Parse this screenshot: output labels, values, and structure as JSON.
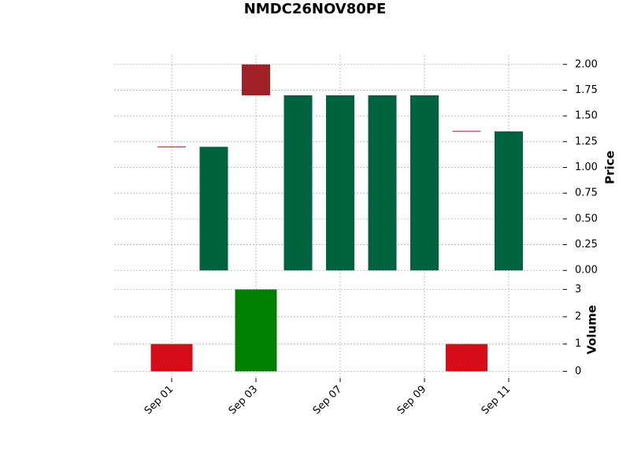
{
  "chart_data": {
    "type": "candlestick",
    "title": "NMDC26NOV80PE",
    "categories": [
      "Sep 01",
      null,
      "Sep 03",
      null,
      "Sep 07",
      null,
      "Sep 09",
      null,
      "Sep 11"
    ],
    "open": [
      1.2,
      0,
      2.0,
      0,
      0,
      0,
      0,
      1.35,
      0
    ],
    "high": [
      1.2,
      1.2,
      2.0,
      1.7,
      1.7,
      1.7,
      1.7,
      1.35,
      1.35
    ],
    "low": [
      1.2,
      0,
      1.7,
      0,
      0,
      0,
      0,
      1.35,
      0
    ],
    "close": [
      1.2,
      1.2,
      1.7,
      1.7,
      1.7,
      1.7,
      1.7,
      1.35,
      1.35
    ],
    "up_color": "#006340",
    "down_color": "#a02128",
    "ylabel": "Price",
    "ylim": [
      -0.09,
      2.09
    ],
    "yticks": [
      {
        "value": 0,
        "label": "0.00"
      },
      {
        "value": 0.25,
        "label": "0.25"
      },
      {
        "value": 0.5,
        "label": "0.50"
      },
      {
        "value": 0.75,
        "label": "0.75"
      },
      {
        "value": 1,
        "label": "1.00"
      },
      {
        "value": 1.25,
        "label": "1.25"
      },
      {
        "value": 1.5,
        "label": "1.50"
      },
      {
        "value": 1.75,
        "label": "1.75"
      },
      {
        "value": 2,
        "label": "2.00"
      }
    ],
    "volume": {
      "values": [
        1,
        0,
        3,
        0,
        0,
        0,
        0,
        1,
        0
      ],
      "up_color": "#007f00",
      "down_color": "#d50d18",
      "ylabel": "Volume",
      "ylim": [
        -0.25,
        3.3
      ],
      "yticks": [
        0,
        1,
        2,
        3
      ]
    },
    "grid": true
  }
}
